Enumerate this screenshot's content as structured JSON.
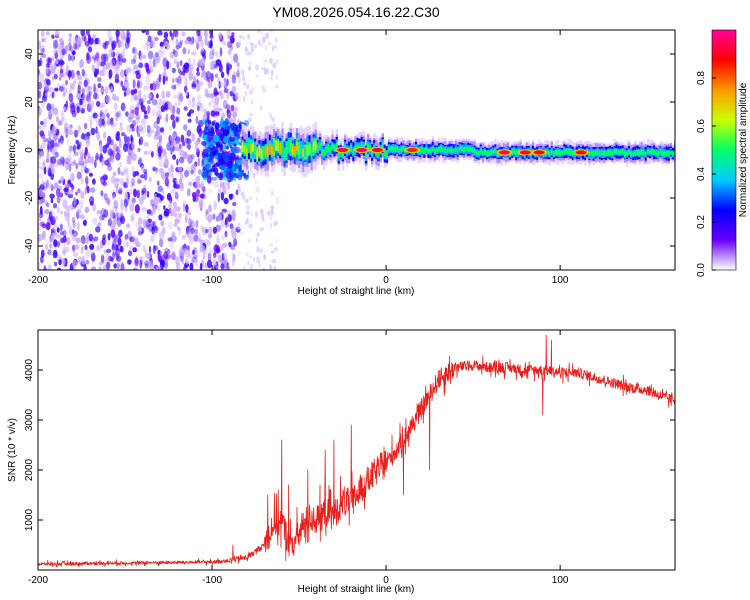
{
  "figure_title": "YM08.2026.054.16.22.C30",
  "chart_data": [
    {
      "type": "heatmap",
      "title": "YM08.2026.054.16.22.C30",
      "xlabel": "Height of straight line (km)",
      "ylabel": "Frequency (Hz)",
      "xlim": [
        -200,
        166
      ],
      "ylim": [
        -50,
        50
      ],
      "xticks": [
        -200,
        -100,
        0,
        100
      ],
      "yticks": [
        -40,
        -20,
        0,
        20,
        40
      ],
      "colorbar": {
        "label": "Normalized spectral amplitude",
        "range": [
          0,
          1
        ],
        "ticks": [
          0.0,
          0.2,
          0.4,
          0.6,
          0.8
        ],
        "tick_labels": [
          "0.0",
          "0.2",
          "0.4",
          "0.6",
          "0.8"
        ],
        "colormap": [
          "#ffffff",
          "#6600ff",
          "#0000ff",
          "#00ccff",
          "#00ff66",
          "#ccff00",
          "#ff9900",
          "#ff0000",
          "#ff0099"
        ]
      },
      "regions": [
        {
          "name": "noise",
          "x_range": [
            -200,
            -85
          ],
          "freq_range": [
            -50,
            50
          ],
          "amplitude": 0.15
        },
        {
          "name": "sparse-noise",
          "x_range": [
            -85,
            -62
          ],
          "freq_range": [
            -50,
            50
          ],
          "amplitude": 0.05
        },
        {
          "name": "onset",
          "x_range": [
            -105,
            -80
          ],
          "freq_range": [
            -12,
            12
          ],
          "amplitude": 0.3
        },
        {
          "name": "signal",
          "x_range": [
            -83,
            166
          ],
          "center_freq": 0,
          "amplitude": 0.5
        }
      ],
      "hot_spots": [
        {
          "x": -25,
          "freq": 0,
          "amplitude": 0.95
        },
        {
          "x": -14,
          "freq": 0,
          "amplitude": 0.95
        },
        {
          "x": -5,
          "freq": 0,
          "amplitude": 0.9
        },
        {
          "x": 15,
          "freq": 0,
          "amplitude": 0.85
        },
        {
          "x": 68,
          "freq": -1,
          "amplitude": 0.95
        },
        {
          "x": 80,
          "freq": -1,
          "amplitude": 0.95
        },
        {
          "x": 88,
          "freq": -1,
          "amplitude": 0.9
        },
        {
          "x": 112,
          "freq": -1,
          "amplitude": 0.9
        }
      ]
    },
    {
      "type": "line",
      "xlabel": "Height of straight line (km)",
      "ylabel": "SNR (10 * v/v)",
      "xlim": [
        -200,
        166
      ],
      "ylim": [
        0,
        4800
      ],
      "xticks": [
        -200,
        -100,
        0,
        100
      ],
      "yticks": [
        1000,
        2000,
        3000,
        4000
      ],
      "series": [
        {
          "name": "SNR",
          "color": "#e8201a",
          "x": [
            -200,
            -150,
            -100,
            -90,
            -80,
            -70,
            -65,
            -60,
            -55,
            -50,
            -45,
            -40,
            -35,
            -30,
            -25,
            -20,
            -15,
            -10,
            -5,
            0,
            5,
            10,
            20,
            30,
            40,
            50,
            60,
            70,
            80,
            90,
            100,
            110,
            120,
            130,
            140,
            150,
            160,
            166
          ],
          "values": [
            120,
            140,
            160,
            190,
            250,
            500,
            900,
            1000,
            450,
            700,
            1050,
            1000,
            1150,
            1100,
            1350,
            1350,
            1600,
            1800,
            2000,
            2150,
            2350,
            2600,
            3200,
            3800,
            4050,
            4100,
            4050,
            4050,
            4000,
            4000,
            3950,
            3950,
            3850,
            3750,
            3650,
            3600,
            3450,
            3400
          ],
          "spikes": [
            {
              "x": -88,
              "y": 500
            },
            {
              "x": -68,
              "y": 1500
            },
            {
              "x": -60,
              "y": 2600
            },
            {
              "x": -56,
              "y": 1700
            },
            {
              "x": -45,
              "y": 2000
            },
            {
              "x": -35,
              "y": 2400
            },
            {
              "x": -30,
              "y": 2600
            },
            {
              "x": -20,
              "y": 2900
            },
            {
              "x": 10,
              "y": 1500
            },
            {
              "x": 25,
              "y": 2000
            },
            {
              "x": 90,
              "y": 3100
            },
            {
              "x": 92,
              "y": 4700
            },
            {
              "x": 95,
              "y": 4600
            }
          ]
        }
      ]
    }
  ]
}
